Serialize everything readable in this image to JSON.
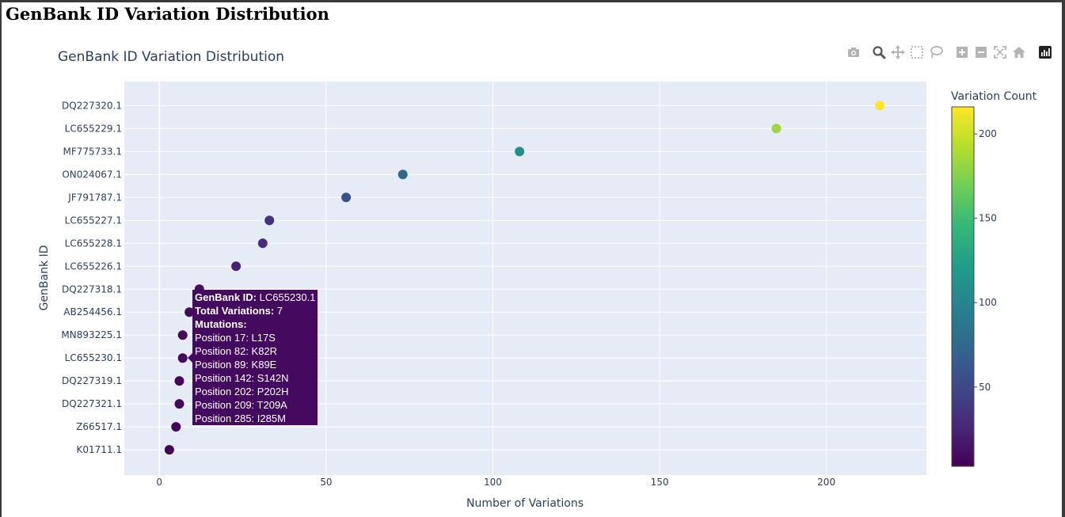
{
  "page": {
    "heading": "GenBank ID Variation Distribution"
  },
  "toolbar": {
    "icons": [
      "camera-icon",
      "zoom-icon",
      "pan-icon",
      "box-select-icon",
      "lasso-select-icon",
      "zoom-in-icon",
      "zoom-out-icon",
      "autoscale-icon",
      "reset-axes-icon",
      "plotly-logo-icon"
    ]
  },
  "chart_data": {
    "type": "scatter",
    "title": "GenBank ID Variation Distribution",
    "xlabel": "Number of Variations",
    "ylabel": "GenBank ID",
    "xlim": [
      -10.5,
      230
    ],
    "xticks": [
      0,
      50,
      100,
      150,
      200
    ],
    "grid": true,
    "colorscale": "Viridis",
    "colorbar": {
      "title": "Variation Count",
      "range": [
        3,
        216
      ],
      "ticks": [
        50,
        100,
        150,
        200
      ]
    },
    "categories": [
      "K01711.1",
      "Z66517.1",
      "DQ227321.1",
      "DQ227319.1",
      "LC655230.1",
      "MN893225.1",
      "AB254456.1",
      "DQ227318.1",
      "LC655226.1",
      "LC655228.1",
      "LC655227.1",
      "JF791787.1",
      "ON024067.1",
      "MF775733.1",
      "LC655229.1",
      "DQ227320.1"
    ],
    "values": [
      3,
      5,
      6,
      6,
      7,
      7,
      9,
      12,
      23,
      31,
      33,
      56,
      73,
      108,
      185,
      216
    ]
  },
  "hover": {
    "id_label": "GenBank ID:",
    "id_value": "LC655230.1",
    "total_label": "Total Variations:",
    "total_value": "7",
    "mutations_label": "Mutations:",
    "mutations": [
      "Position 17: L17S",
      "Position 82: K82R",
      "Position 89: K89E",
      "Position 142: S142N",
      "Position 202: P202H",
      "Position 209: T209A",
      "Position 285: I285M"
    ]
  }
}
